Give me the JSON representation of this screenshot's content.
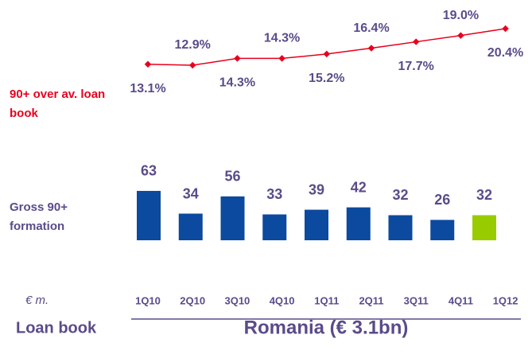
{
  "chart_data": [
    {
      "type": "line",
      "label": "90+ over av. loan book",
      "color": "#e8001c",
      "values": [
        13.1,
        12.9,
        14.3,
        14.3,
        15.2,
        16.4,
        17.7,
        19.0,
        20.4
      ],
      "value_labels": [
        "13.1%",
        "12.9%",
        "14.3%",
        "14.3%",
        "15.2%",
        "16.4%",
        "17.7%",
        "19.0%",
        "20.4%"
      ]
    },
    {
      "type": "bar",
      "label": "Gross 90+ formation",
      "unit": "€ m.",
      "categories": [
        "1Q10",
        "2Q10",
        "3Q10",
        "4Q10",
        "1Q11",
        "2Q11",
        "3Q11",
        "4Q11",
        "1Q12"
      ],
      "values": [
        63,
        34,
        56,
        33,
        39,
        42,
        32,
        26,
        32
      ],
      "colors": [
        "#0b4a9e",
        "#0b4a9e",
        "#0b4a9e",
        "#0b4a9e",
        "#0b4a9e",
        "#0b4a9e",
        "#0b4a9e",
        "#0b4a9e",
        "#99cc00"
      ]
    }
  ],
  "footer": {
    "left": "Loan book",
    "title": "Romania (€ 3.1bn)"
  }
}
